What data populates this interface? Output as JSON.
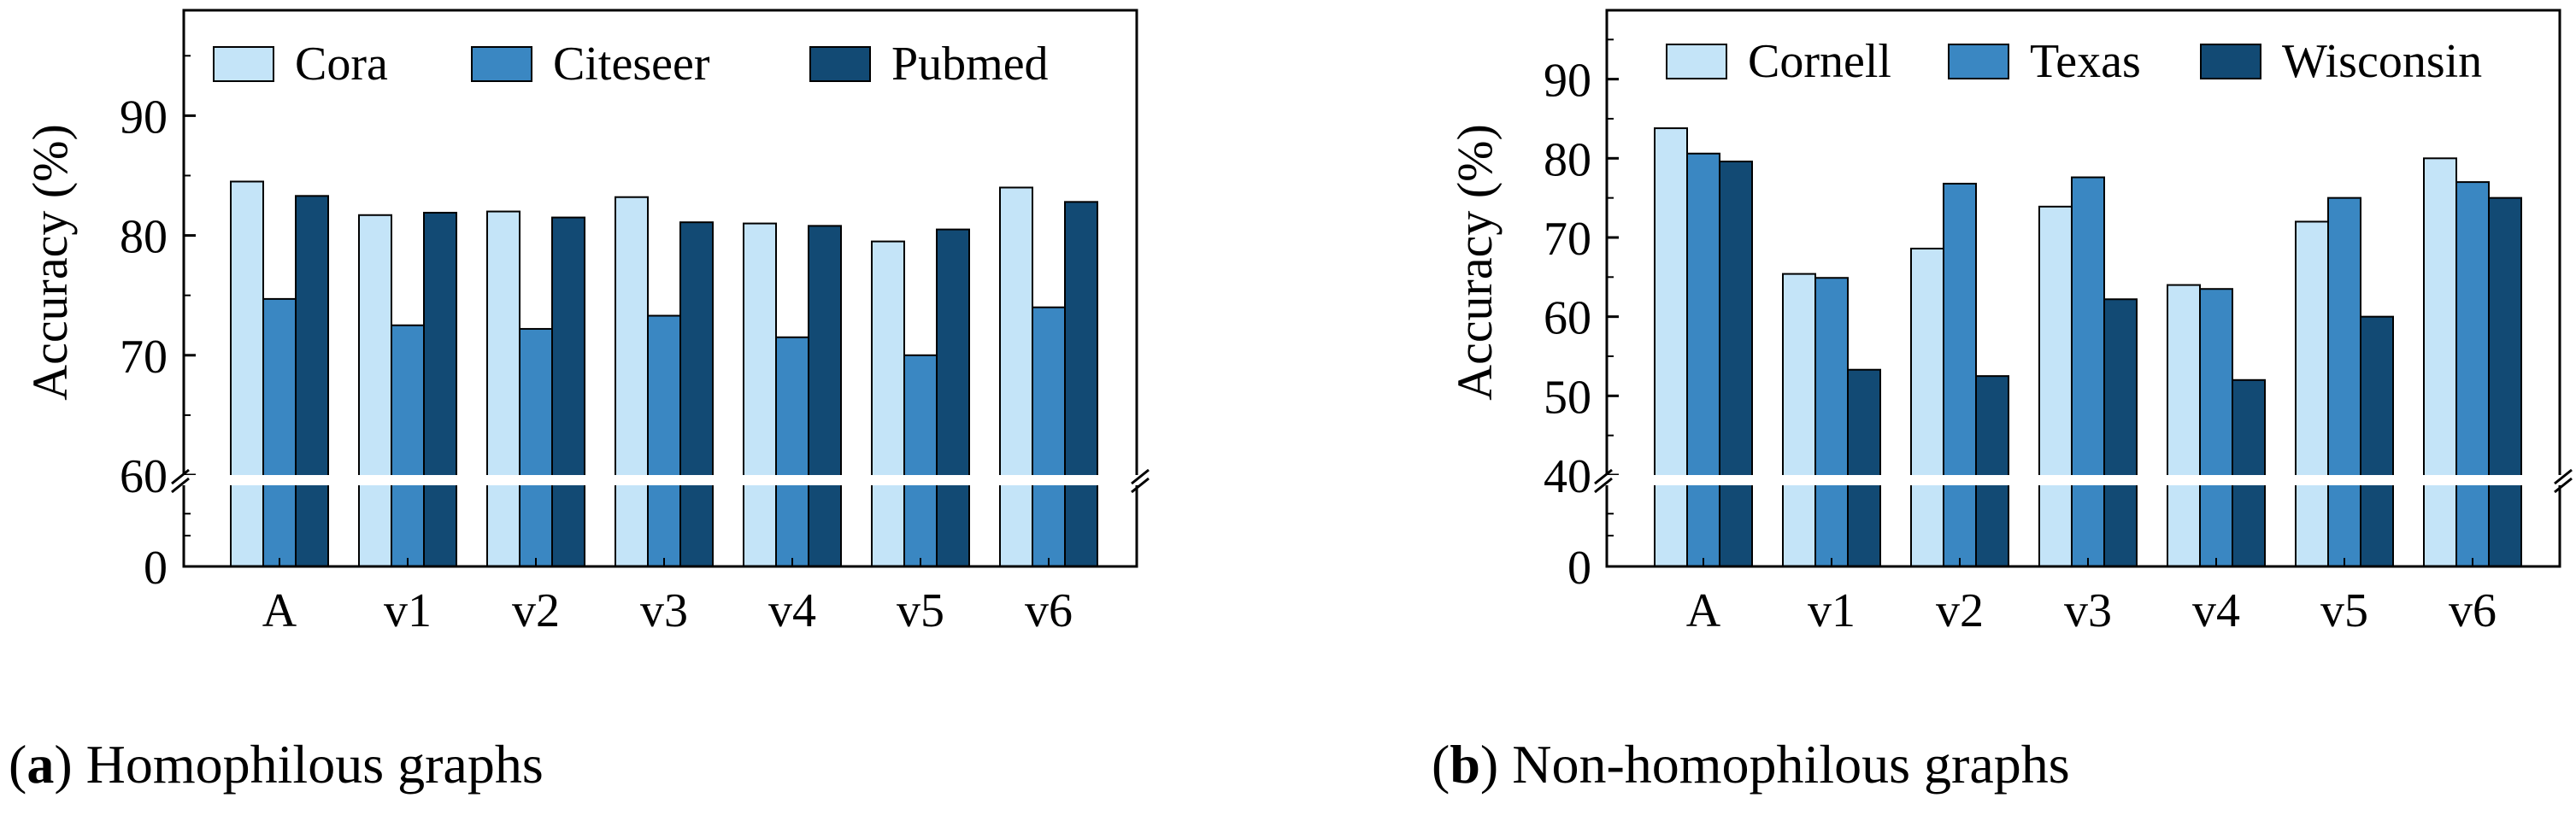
{
  "chart_data": [
    {
      "type": "bar",
      "id": "a",
      "ylabel": "Accuracy (%)",
      "categories": [
        "A",
        "v1",
        "v2",
        "v3",
        "v4",
        "v5",
        "v6"
      ],
      "series": [
        {
          "name": "Cora",
          "color": "#c4e4f8",
          "values": [
            84.5,
            81.7,
            82.0,
            83.2,
            81.0,
            79.5,
            84.0
          ]
        },
        {
          "name": "Citeseer",
          "color": "#3a87c2",
          "values": [
            74.7,
            72.5,
            72.2,
            73.3,
            71.5,
            70.0,
            74.0
          ]
        },
        {
          "name": "Pubmed",
          "color": "#124a74",
          "values": [
            83.3,
            81.9,
            81.5,
            81.1,
            80.8,
            80.5,
            82.8
          ]
        }
      ],
      "yticks_upper": [
        "90",
        "80",
        "70",
        "60"
      ],
      "yticks_lower": [
        "0"
      ],
      "upper_range": [
        60,
        98.8
      ],
      "axis_break": true,
      "legend_position": "top"
    },
    {
      "type": "bar",
      "id": "b",
      "ylabel": "Accuracy (%)",
      "categories": [
        "A",
        "v1",
        "v2",
        "v3",
        "v4",
        "v5",
        "v6"
      ],
      "series": [
        {
          "name": "Cornell",
          "color": "#c4e4f8",
          "values": [
            83.8,
            65.4,
            68.6,
            73.9,
            64.0,
            72.0,
            80.0
          ]
        },
        {
          "name": "Texas",
          "color": "#3a87c2",
          "values": [
            80.6,
            64.9,
            76.8,
            77.6,
            63.5,
            75.0,
            77.0
          ]
        },
        {
          "name": "Wisconsin",
          "color": "#124a74",
          "values": [
            79.6,
            53.3,
            52.5,
            62.2,
            52.0,
            60.0,
            75.0
          ]
        }
      ],
      "yticks_upper": [
        "90",
        "80",
        "70",
        "60",
        "50",
        "40"
      ],
      "yticks_lower": [
        "0"
      ],
      "upper_range": [
        40,
        98.7
      ],
      "axis_break": true,
      "legend_position": "top"
    }
  ],
  "captions": [
    {
      "label": "(a)",
      "letter": "a",
      "text": "Homophilous graphs"
    },
    {
      "label": "(b)",
      "letter": "b",
      "text": "Non-homophilous graphs"
    }
  ]
}
